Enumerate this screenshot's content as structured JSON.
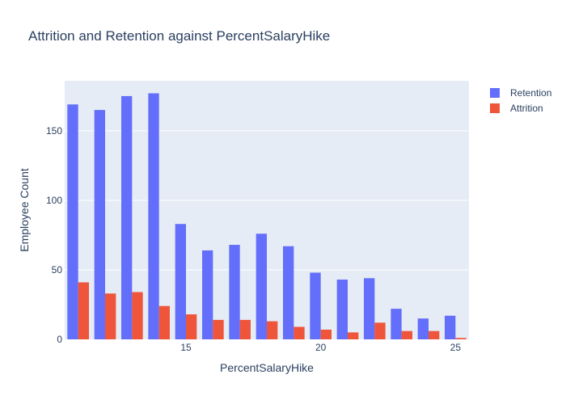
{
  "chart_data": {
    "type": "bar",
    "title": "Attrition and Retention against PercentSalaryHike",
    "xlabel": "PercentSalaryHike",
    "ylabel": "Employee Count",
    "x": [
      11,
      12,
      13,
      14,
      15,
      16,
      17,
      18,
      19,
      20,
      21,
      22,
      23,
      24,
      25
    ],
    "xticks": [
      15,
      20,
      25
    ],
    "yticks": [
      0,
      50,
      100,
      150
    ],
    "xlim": [
      10.5,
      25.5
    ],
    "ylim": [
      0,
      186
    ],
    "grid": true,
    "legend_position": "top-right",
    "series": [
      {
        "name": "Retention",
        "color": "#636efa",
        "values": [
          169,
          165,
          175,
          177,
          83,
          64,
          68,
          76,
          67,
          48,
          43,
          44,
          22,
          15,
          17
        ]
      },
      {
        "name": "Attrition",
        "color": "#ef553b",
        "values": [
          41,
          33,
          34,
          24,
          18,
          14,
          14,
          13,
          9,
          7,
          5,
          12,
          6,
          6,
          1
        ]
      }
    ]
  }
}
